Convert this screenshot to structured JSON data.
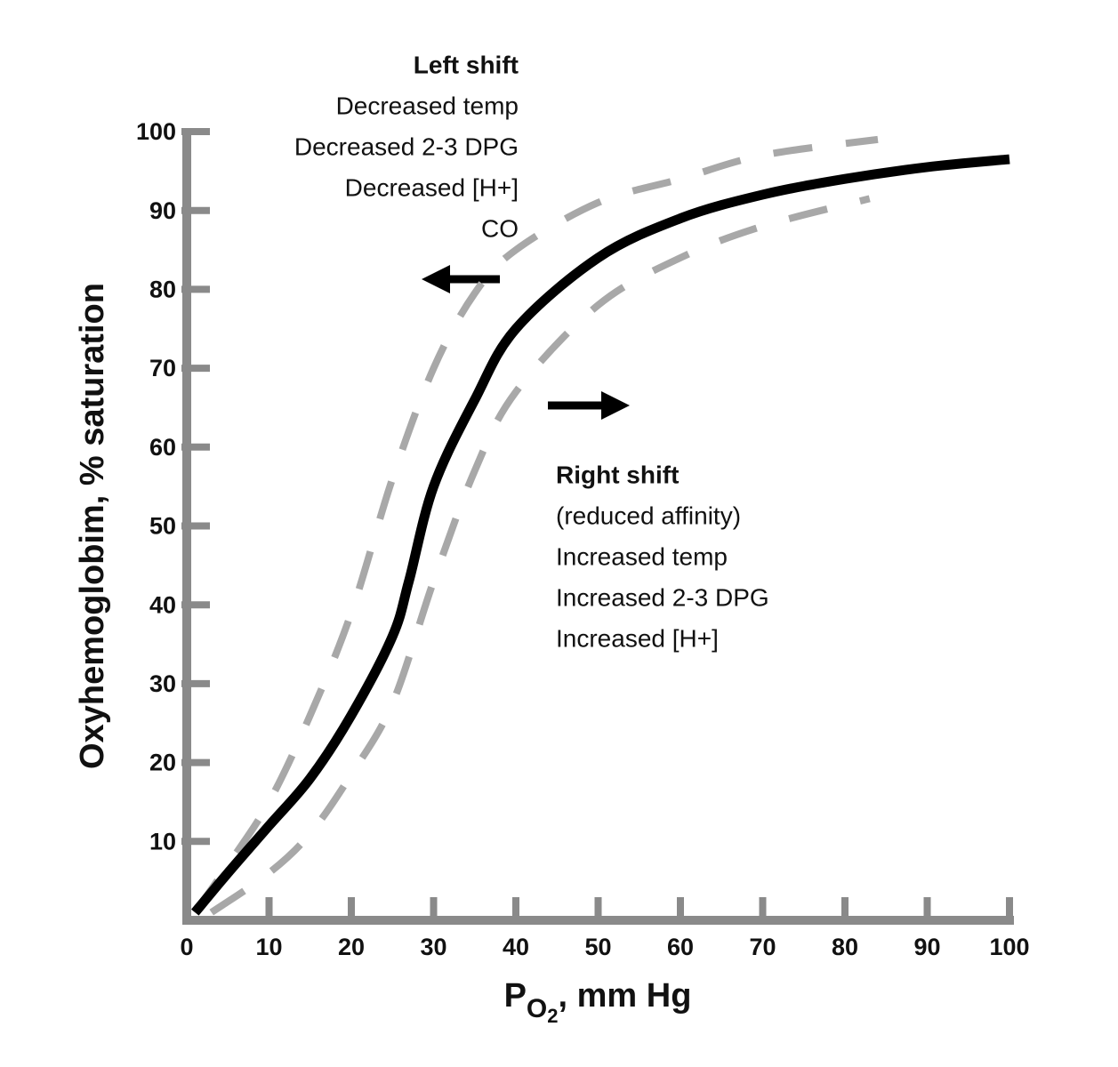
{
  "chart_data": {
    "type": "line",
    "y_label": "Oxyhemoglobim, % saturation",
    "x_label": [
      "P",
      "O",
      "2",
      ", mm Hg"
    ],
    "xlim": [
      0,
      100
    ],
    "ylim": [
      0,
      100
    ],
    "xticks": [
      0,
      10,
      20,
      30,
      40,
      50,
      60,
      70,
      80,
      90,
      100
    ],
    "yticks": [
      10,
      20,
      30,
      40,
      50,
      60,
      70,
      80,
      90,
      100
    ],
    "grid": false,
    "series": [
      {
        "color": "#000000",
        "dashed": false,
        "x": [
          1,
          5,
          10,
          15,
          20,
          25,
          27,
          30,
          35,
          40,
          50,
          60,
          70,
          80,
          90,
          100
        ],
        "values": [
          1,
          6,
          12,
          18,
          26,
          36,
          43,
          55,
          66,
          75,
          84,
          89,
          92,
          94,
          95.5,
          96.5
        ]
      },
      {
        "color": "#a8a8a8",
        "dashed": true,
        "x": [
          1,
          5,
          10,
          15,
          20,
          25,
          30,
          35,
          40,
          50,
          60,
          70,
          84
        ],
        "values": [
          1,
          7,
          15,
          26,
          39,
          56,
          70,
          79.5,
          85,
          91,
          94,
          97,
          99
        ]
      },
      {
        "color": "#a8a8a8",
        "dashed": true,
        "x": [
          3,
          10,
          15,
          20,
          25,
          30,
          35,
          40,
          50,
          60,
          70,
          83
        ],
        "values": [
          1,
          6,
          11,
          18.5,
          27.5,
          43,
          57,
          67,
          78,
          84,
          88,
          91.5
        ]
      }
    ],
    "annotations": [
      [
        "Left shift",
        "Decreased temp",
        "Decreased 2-3 DPG",
        "Decreased [H+]",
        "CO"
      ],
      [
        "Right shift",
        "(reduced affinity)",
        "Increased temp",
        "Increased 2-3 DPG",
        "Increased [H+]"
      ]
    ]
  }
}
